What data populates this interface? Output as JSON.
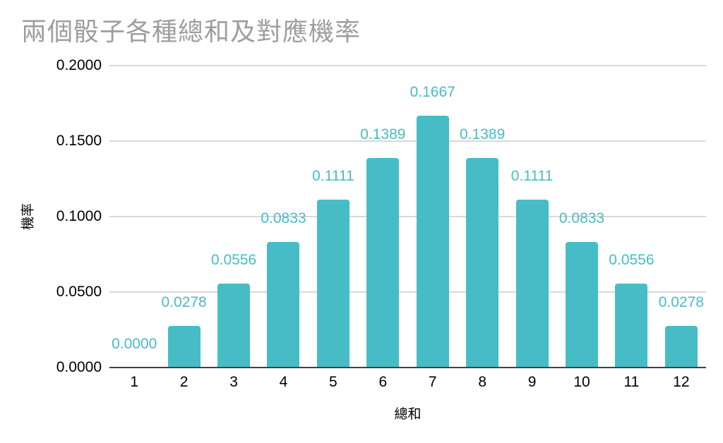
{
  "chart_data": {
    "type": "bar",
    "title": "兩個骰子各種總和及對應機率",
    "xlabel": "總和",
    "ylabel": "機率",
    "categories": [
      "1",
      "2",
      "3",
      "4",
      "5",
      "6",
      "7",
      "8",
      "9",
      "10",
      "11",
      "12"
    ],
    "values": [
      0,
      0.0278,
      0.0556,
      0.0833,
      0.1111,
      0.1389,
      0.1667,
      0.1389,
      0.1111,
      0.0833,
      0.0556,
      0.0278
    ],
    "value_labels": [
      "0.0000",
      "0.0278",
      "0.0556",
      "0.0833",
      "0.1111",
      "0.1389",
      "0.1667",
      "0.1389",
      "0.1111",
      "0.0833",
      "0.0556",
      "0.0278"
    ],
    "ylim": [
      0,
      0.2
    ],
    "yticks": [
      {
        "label": "0.0000",
        "value": 0.0
      },
      {
        "label": "0.0500",
        "value": 0.05
      },
      {
        "label": "0.1000",
        "value": 0.1
      },
      {
        "label": "0.1500",
        "value": 0.15
      },
      {
        "label": "0.2000",
        "value": 0.2
      }
    ],
    "grid": true,
    "legend": "none",
    "colors": {
      "bar": "#46bdc6",
      "data_label": "#46bdc6",
      "title": "#9e9e9e",
      "axis_text": "#000000",
      "gridline": "#d9d9d9",
      "baseline": "#424242",
      "background": "#ffffff"
    }
  }
}
